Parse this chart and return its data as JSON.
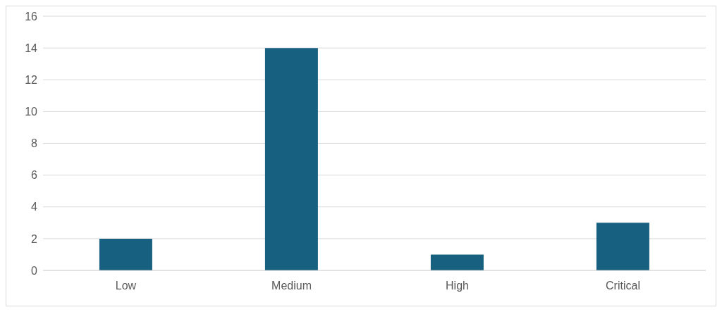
{
  "chart_data": {
    "type": "bar",
    "categories": [
      "Low",
      "Medium",
      "High",
      "Critical"
    ],
    "values": [
      2,
      14,
      1,
      3
    ],
    "color": "#17607f",
    "ylim": [
      0,
      16
    ],
    "yticks": [
      0,
      2,
      4,
      6,
      8,
      10,
      12,
      14,
      16
    ],
    "grid": "y"
  }
}
